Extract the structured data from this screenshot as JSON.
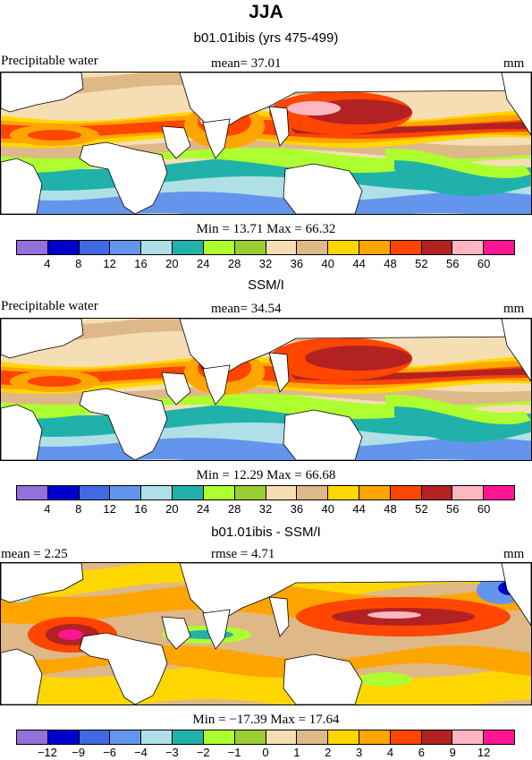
{
  "figure_title": "JJA",
  "panels": [
    {
      "title": "b01.01ibis (yrs 475-499)",
      "left_label": "Precipitable water",
      "mid_label": "mean=  37.01",
      "units": "mm",
      "minmax": "Min =  13.71 Max =  66.32",
      "palette": "full",
      "pattern": "model"
    },
    {
      "title": "SSM/I",
      "left_label": "Precipitable water",
      "mid_label": "mean=  34.54",
      "units": "mm",
      "minmax": "Min =  12.29 Max =  66.68",
      "palette": "full",
      "pattern": "obs"
    },
    {
      "title": "b01.01ibis - SSM/I",
      "left_label": "mean =    2.25",
      "mid_label": "rmse =    4.71",
      "units": "mm",
      "minmax": "Min = −17.39 Max =  17.64",
      "palette": "diff",
      "pattern": "diff"
    }
  ],
  "chart_data": [
    {
      "type": "heatmap",
      "title": "b01.01ibis (yrs 475-499)",
      "variable": "Precipitable water",
      "units": "mm",
      "mean": 37.01,
      "min": 13.71,
      "max": 66.32,
      "colorbar_levels": [
        4,
        8,
        12,
        16,
        20,
        24,
        28,
        32,
        36,
        40,
        44,
        48,
        52,
        56,
        60
      ],
      "colorbar_colors": [
        "#9370db",
        "#0000cd",
        "#4169e1",
        "#6495ed",
        "#b0e0e6",
        "#20b2aa",
        "#adff2f",
        "#9acd32",
        "#f5deb3",
        "#deb887",
        "#ffd700",
        "#ffa500",
        "#ff4500",
        "#b22222",
        "#ffb6c1",
        "#ff1493"
      ]
    },
    {
      "type": "heatmap",
      "title": "SSM/I",
      "variable": "Precipitable water",
      "units": "mm",
      "mean": 34.54,
      "min": 12.29,
      "max": 66.68,
      "colorbar_levels": [
        4,
        8,
        12,
        16,
        20,
        24,
        28,
        32,
        36,
        40,
        44,
        48,
        52,
        56,
        60
      ],
      "colorbar_colors": [
        "#9370db",
        "#0000cd",
        "#4169e1",
        "#6495ed",
        "#b0e0e6",
        "#20b2aa",
        "#adff2f",
        "#9acd32",
        "#f5deb3",
        "#deb887",
        "#ffd700",
        "#ffa500",
        "#ff4500",
        "#b22222",
        "#ffb6c1",
        "#ff1493"
      ]
    },
    {
      "type": "heatmap",
      "title": "b01.01ibis - SSM/I",
      "units": "mm",
      "mean": 2.25,
      "rmse": 4.71,
      "min": -17.39,
      "max": 17.64,
      "colorbar_levels": [
        -12,
        -9,
        -6,
        -4,
        -3,
        -2,
        -1,
        0,
        1,
        2,
        3,
        4,
        6,
        9,
        12
      ],
      "colorbar_colors": [
        "#9370db",
        "#0000cd",
        "#4169e1",
        "#6495ed",
        "#b0e0e6",
        "#20b2aa",
        "#adff2f",
        "#9acd32",
        "#f5deb3",
        "#deb887",
        "#ffd700",
        "#ffa500",
        "#ff4500",
        "#b22222",
        "#ffb6c1",
        "#ff1493"
      ]
    }
  ],
  "colorbar_labels": {
    "full": [
      "4",
      "8",
      "12",
      "16",
      "20",
      "24",
      "28",
      "32",
      "36",
      "40",
      "44",
      "48",
      "52",
      "56",
      "60"
    ],
    "diff": [
      "−12",
      "−9",
      "−6",
      "−4",
      "−3",
      "−2",
      "−1",
      "0",
      "1",
      "2",
      "3",
      "4",
      "6",
      "9",
      "12"
    ]
  }
}
